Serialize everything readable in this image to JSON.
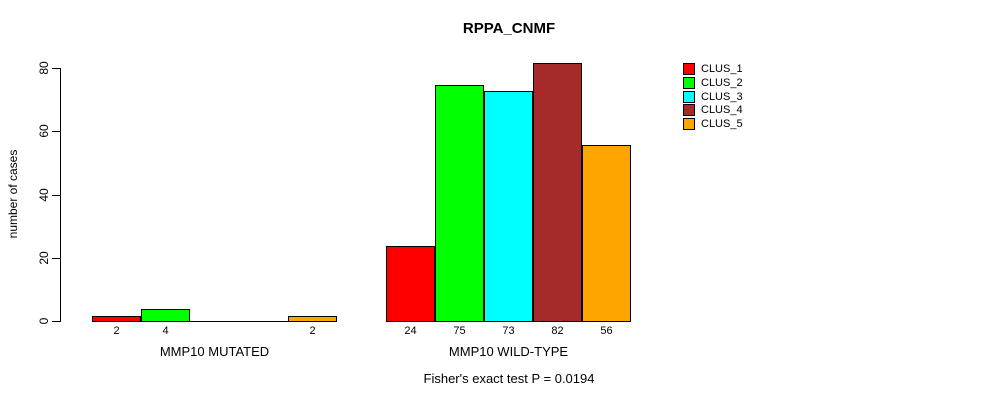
{
  "chart_data": {
    "type": "bar",
    "title": "RPPA_CNMF",
    "ylabel": "number of cases",
    "ylim": [
      0,
      80
    ],
    "yticks": [
      0,
      20,
      40,
      60,
      80
    ],
    "grid": false,
    "legend_position": "right",
    "categories": [
      "MMP10 MUTATED",
      "MMP10 WILD-TYPE"
    ],
    "series": [
      {
        "name": "CLUS_1",
        "color": "#FF0000",
        "values": [
          2,
          24
        ],
        "bar_labels": [
          "2",
          "24"
        ]
      },
      {
        "name": "CLUS_2",
        "color": "#00FF00",
        "values": [
          4,
          75
        ],
        "bar_labels": [
          "4",
          "75"
        ]
      },
      {
        "name": "CLUS_3",
        "color": "#00FFFF",
        "values": [
          0,
          73
        ],
        "bar_labels": [
          "",
          "73"
        ]
      },
      {
        "name": "CLUS_4",
        "color": "#A52A2A",
        "values": [
          0,
          82
        ],
        "bar_labels": [
          "",
          "82"
        ]
      },
      {
        "name": "CLUS_5",
        "color": "#FFA500",
        "values": [
          2,
          56
        ],
        "bar_labels": [
          "2",
          "56"
        ]
      }
    ],
    "annotation": "Fisher's exact test P = 0.0194",
    "axis_color": "#000000",
    "text_color": "#000000",
    "background": "#FFFFFF"
  }
}
